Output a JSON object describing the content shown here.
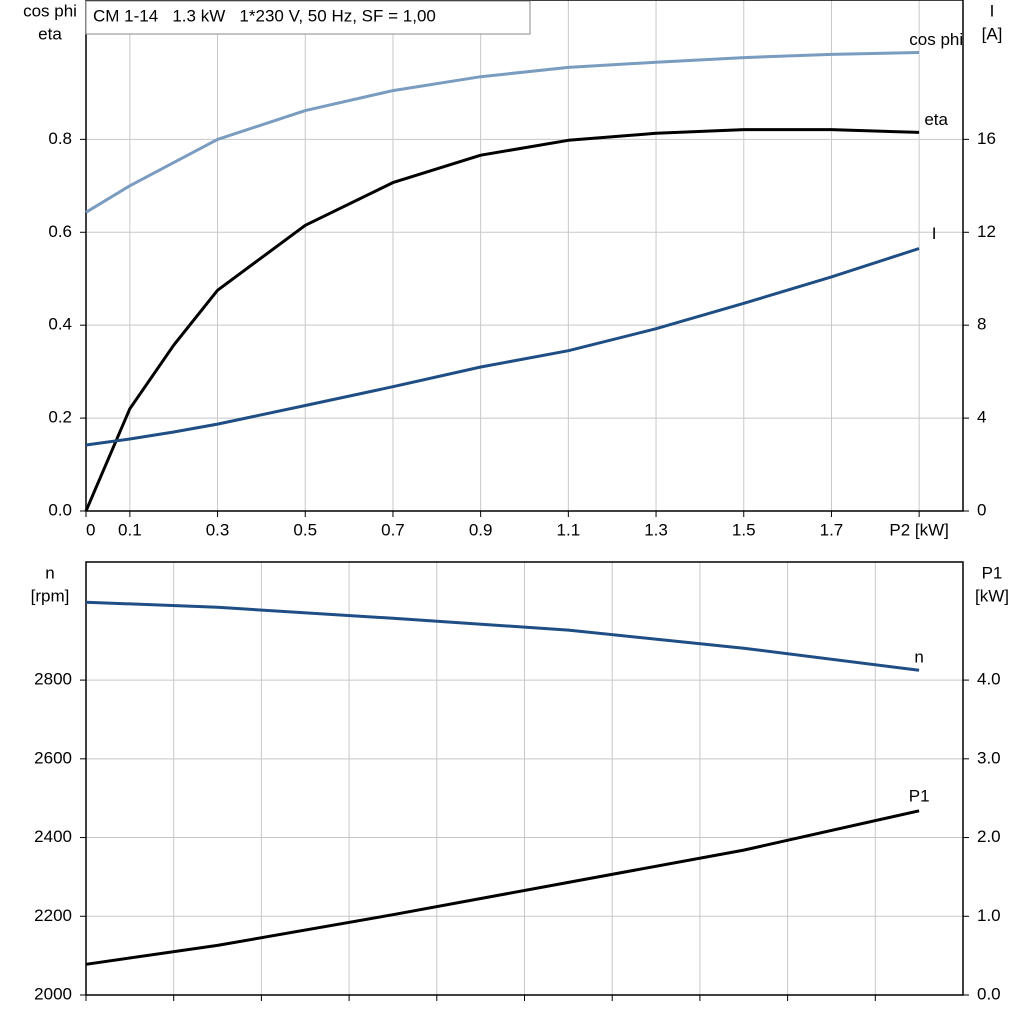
{
  "chart_data": [
    {
      "type": "line",
      "title": "CM 1-14   1.3 kW   1*230 V, 50 Hz, SF = 1,00",
      "y_label": [
        "cos phi",
        "eta"
      ],
      "y2_label": [
        "I",
        "[A]"
      ],
      "x": [
        0,
        0.1,
        0.2,
        0.3,
        0.5,
        0.7,
        0.9,
        1.1,
        1.3,
        1.5,
        1.7,
        1.9
      ],
      "xlim": [
        0,
        2.0
      ],
      "xticks": [
        {
          "value": 0,
          "label": "0"
        },
        0.1,
        0.3,
        0.5,
        0.7,
        0.9,
        1.1,
        1.3,
        1.5,
        1.7,
        {
          "value": 1.9,
          "label": "P2 [kW]"
        }
      ],
      "ylim": [
        0,
        1.1
      ],
      "yticks": [
        {
          "value": 0,
          "label": "0.0"
        },
        0.2,
        0.4,
        0.6,
        0.8
      ],
      "y2lim": [
        0,
        22
      ],
      "y2ticks": [
        0,
        4,
        8,
        12,
        16
      ],
      "grid": true,
      "series": [
        {
          "name": "cos phi",
          "color": "#7a9cc0",
          "values": [
            0.643,
            0.7,
            0.75,
            0.8,
            0.862,
            0.905,
            0.935,
            0.955,
            0.966,
            0.976,
            0.983,
            0.987
          ]
        },
        {
          "name": "eta",
          "color": "#000000",
          "values": [
            0,
            0.22,
            0.357,
            0.475,
            0.615,
            0.707,
            0.766,
            0.798,
            0.813,
            0.821,
            0.821,
            0.815
          ]
        },
        {
          "name": "I",
          "color": "#1f4e85",
          "axis": "y2",
          "values": [
            2.84,
            3.1,
            3.4,
            3.74,
            4.54,
            5.35,
            6.2,
            6.9,
            7.85,
            8.94,
            10.08,
            11.3
          ]
        }
      ]
    },
    {
      "type": "line",
      "y_label": [
        "n",
        "[rpm]"
      ],
      "y2_label": [
        "P1",
        "[kW]"
      ],
      "x": [
        0,
        0.3,
        0.7,
        1.1,
        1.5,
        1.9
      ],
      "xlim": [
        0,
        2.0
      ],
      "xticks": [
        0,
        0.2,
        0.4,
        0.6,
        0.8,
        1.0,
        1.2,
        1.4,
        1.6,
        1.8
      ],
      "ylim": [
        2000,
        3100
      ],
      "yticks": [
        2000,
        2200,
        2400,
        2600,
        2800
      ],
      "y2lim": [
        0,
        5.5
      ],
      "y2ticks": [
        {
          "value": 0,
          "label": "0.0"
        },
        {
          "value": 1,
          "label": "1.0"
        },
        {
          "value": 2,
          "label": "2.0"
        },
        {
          "value": 3,
          "label": "3.0"
        },
        {
          "value": 4,
          "label": "4.0"
        }
      ],
      "grid": true,
      "series": [
        {
          "name": "n",
          "color": "#1f4e85",
          "values": [
            2998,
            2985,
            2957,
            2927,
            2881,
            2825
          ]
        },
        {
          "name": "P1",
          "color": "#000000",
          "axis": "y2",
          "values": [
            0.39,
            0.63,
            1.02,
            1.43,
            1.84,
            2.34
          ]
        }
      ]
    }
  ]
}
